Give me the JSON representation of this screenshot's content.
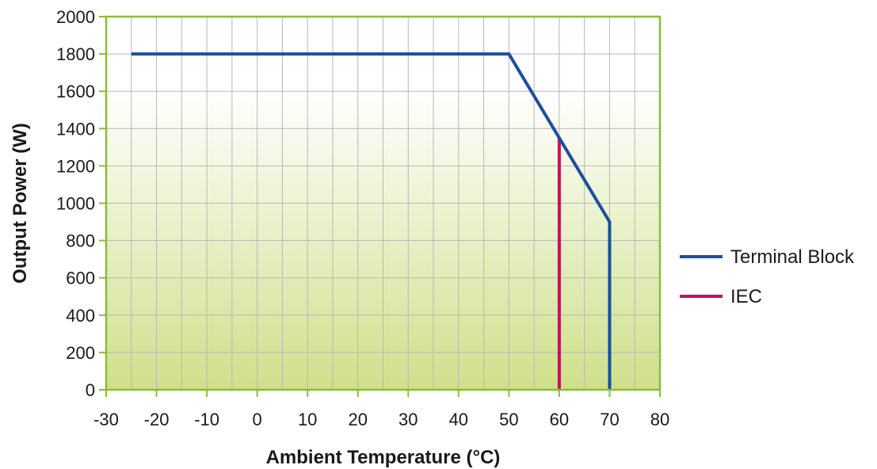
{
  "chart_data": {
    "type": "line",
    "xlabel": "Ambient Temperature (°C)",
    "ylabel": "Output Power (W)",
    "xlim": [
      -30,
      80
    ],
    "ylim": [
      0,
      2000
    ],
    "xticks": [
      -30,
      -20,
      -10,
      0,
      10,
      20,
      30,
      40,
      50,
      60,
      70,
      80
    ],
    "yticks": [
      0,
      200,
      400,
      600,
      800,
      1000,
      1200,
      1400,
      1600,
      1800,
      2000
    ],
    "x_minor_step": 5,
    "grid": true,
    "legend_position": "right",
    "colors": {
      "frame": "#8dbb3a",
      "grid": "#b8b8b8",
      "background_top": "#ffffff",
      "background_bottom": "#cfe08a"
    },
    "series": [
      {
        "name": "Terminal Block",
        "color": "#1b4f9c",
        "points": [
          [
            -25,
            1800
          ],
          [
            50,
            1800
          ],
          [
            70,
            900
          ],
          [
            70,
            0
          ]
        ]
      },
      {
        "name": "IEC",
        "color": "#c0145a",
        "points": [
          [
            60,
            1350
          ],
          [
            60,
            0
          ]
        ]
      }
    ]
  }
}
